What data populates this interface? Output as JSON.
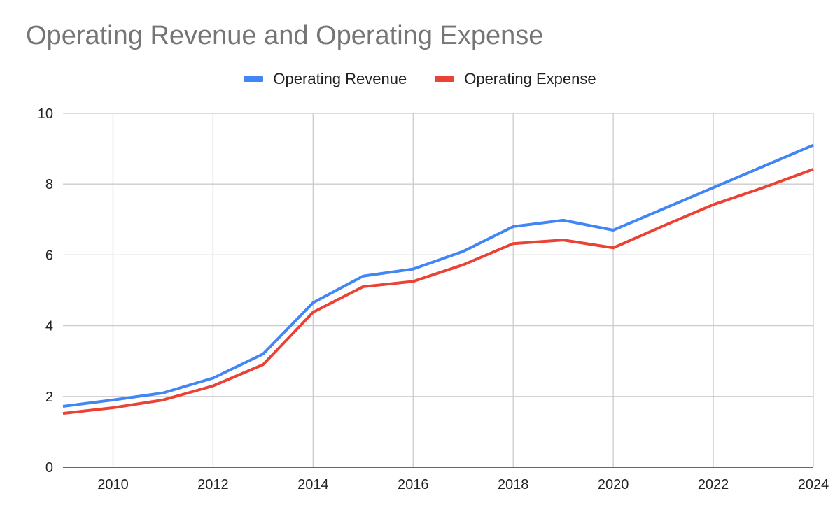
{
  "chart_data": {
    "type": "line",
    "title": "Operating Revenue and Operating Expense",
    "xlabel": "",
    "ylabel": "",
    "xlim": [
      2009,
      2024
    ],
    "ylim": [
      0,
      10
    ],
    "x_ticks": [
      2010,
      2012,
      2014,
      2016,
      2018,
      2020,
      2022,
      2024
    ],
    "y_ticks": [
      0,
      2,
      4,
      6,
      8,
      10
    ],
    "grid": true,
    "legend_position": "top-center",
    "x": [
      2009,
      2010,
      2011,
      2012,
      2013,
      2014,
      2015,
      2016,
      2017,
      2018,
      2019,
      2020,
      2021,
      2022,
      2023,
      2024
    ],
    "series": [
      {
        "name": "Operating Revenue",
        "color": "#4285f4",
        "values": [
          1.72,
          1.9,
          2.1,
          2.52,
          3.2,
          4.65,
          5.4,
          5.6,
          6.1,
          6.8,
          6.98,
          6.7,
          7.3,
          7.9,
          8.5,
          9.1
        ]
      },
      {
        "name": "Operating Expense",
        "color": "#ea4335",
        "values": [
          1.52,
          1.68,
          1.9,
          2.3,
          2.9,
          4.38,
          5.1,
          5.25,
          5.72,
          6.32,
          6.42,
          6.2,
          6.82,
          7.42,
          7.9,
          8.42
        ]
      }
    ]
  }
}
